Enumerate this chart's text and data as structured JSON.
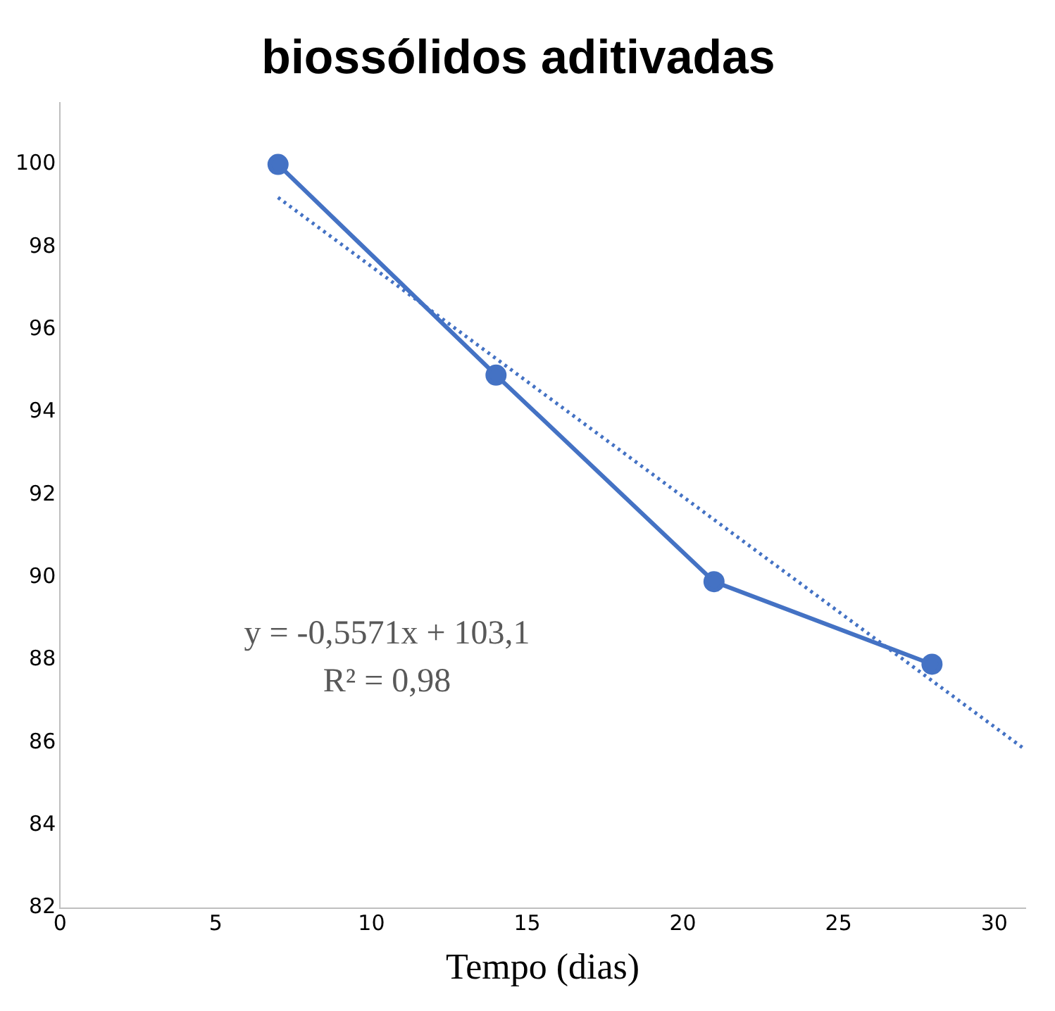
{
  "chart_data": {
    "type": "line",
    "title": "biossólidos aditivadas",
    "xlabel": "Tempo (dias)",
    "xlim": [
      0,
      31
    ],
    "xticks": [
      0,
      5,
      10,
      15,
      20,
      25,
      30
    ],
    "ylim": [
      82,
      101.5
    ],
    "yticks": [
      82,
      84,
      86,
      88,
      90,
      92,
      94,
      96,
      98,
      100
    ],
    "series": [
      {
        "color": "#4472c4",
        "x": [
          7,
          14,
          21,
          28
        ],
        "values": [
          100,
          94.9,
          89.9,
          87.9
        ],
        "marker": "circle",
        "line_style": "solid"
      },
      {
        "type": "line",
        "color": "#4472c4",
        "x": [
          7,
          31
        ],
        "values": [
          99.2,
          85.83
        ],
        "marker": "none",
        "line_style": "dotted"
      }
    ],
    "annotations": [
      "y = -0,5571x + 103,1",
      "R² = 0,98"
    ],
    "grid": false,
    "legend": false
  }
}
